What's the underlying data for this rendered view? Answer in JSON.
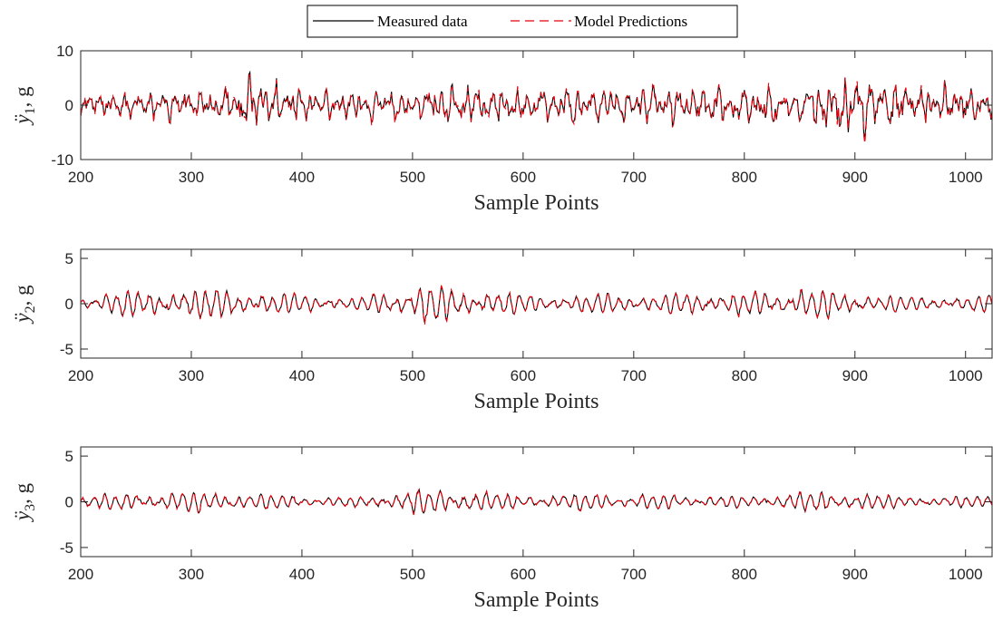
{
  "legend": {
    "items": [
      {
        "label": "Measured data",
        "color": "#000000",
        "dash": "solid"
      },
      {
        "label": "Model Predictions",
        "color": "#e8000b",
        "dash": "dashed"
      }
    ],
    "placement": "top-center"
  },
  "chart_data": [
    {
      "type": "line",
      "title": "",
      "xlabel": "Sample Points",
      "ylabel": "ÿ1, g",
      "ylabel_base": "ÿ",
      "ylabel_sub": "1",
      "ylabel_unit": ", g",
      "xlim": [
        200,
        1024
      ],
      "ylim": [
        -10,
        10
      ],
      "xticks": [
        200,
        300,
        400,
        500,
        600,
        700,
        800,
        900,
        1000
      ],
      "yticks": [
        -10,
        0,
        10
      ],
      "grid": false,
      "series": [
        {
          "name": "Measured data",
          "color": "#000000",
          "envelope": {
            "x": [
              200,
              330,
              345,
              400,
              500,
              560,
              600,
              700,
              740,
              800,
              870,
              895,
              940,
              1024
            ],
            "amp": [
              2.3,
              2.4,
              5.5,
              2.4,
              2.4,
              3.2,
              2.6,
              2.8,
              3.0,
              2.8,
              3.2,
              5.6,
              3.4,
              2.6
            ]
          }
        },
        {
          "name": "Model Predictions",
          "color": "#e8000b",
          "envelope": {
            "x": [
              200,
              330,
              345,
              400,
              500,
              560,
              600,
              700,
              740,
              800,
              870,
              895,
              940,
              1024
            ],
            "amp": [
              2.3,
              2.4,
              5.5,
              2.4,
              2.4,
              3.2,
              2.6,
              2.8,
              3.0,
              2.8,
              3.2,
              5.6,
              3.4,
              2.6
            ]
          }
        }
      ]
    },
    {
      "type": "line",
      "title": "",
      "xlabel": "Sample Points",
      "ylabel": "ÿ2, g",
      "ylabel_base": "ÿ",
      "ylabel_sub": "2",
      "ylabel_unit": ", g",
      "xlim": [
        200,
        1024
      ],
      "ylim": [
        -6,
        6
      ],
      "xticks": [
        200,
        300,
        400,
        500,
        600,
        700,
        800,
        900,
        1000
      ],
      "yticks": [
        -5,
        0,
        5
      ],
      "grid": false,
      "series": [
        {
          "name": "Measured data",
          "color": "#000000",
          "envelope": {
            "x": [
              200,
              250,
              320,
              400,
              450,
              510,
              560,
              600,
              700,
              800,
              870,
              950,
              1024
            ],
            "amp": [
              0.8,
              1.4,
              1.6,
              1.0,
              0.6,
              2.1,
              1.3,
              1.0,
              1.0,
              1.2,
              1.6,
              0.7,
              0.9
            ]
          }
        },
        {
          "name": "Model Predictions",
          "color": "#e8000b",
          "envelope": {
            "x": [
              200,
              250,
              320,
              400,
              450,
              510,
              560,
              600,
              700,
              800,
              870,
              950,
              1024
            ],
            "amp": [
              0.8,
              1.4,
              1.6,
              1.0,
              0.6,
              2.1,
              1.3,
              1.0,
              1.0,
              1.2,
              1.6,
              0.7,
              0.9
            ]
          }
        }
      ]
    },
    {
      "type": "line",
      "title": "",
      "xlabel": "Sample Points",
      "ylabel": "ÿ3, g",
      "ylabel_base": "ÿ",
      "ylabel_sub": "3",
      "ylabel_unit": ", g",
      "xlim": [
        200,
        1024
      ],
      "ylim": [
        -6,
        6
      ],
      "xticks": [
        200,
        300,
        400,
        500,
        600,
        700,
        800,
        900,
        1000
      ],
      "yticks": [
        -5,
        0,
        5
      ],
      "grid": false,
      "series": [
        {
          "name": "Measured data",
          "color": "#000000",
          "envelope": {
            "x": [
              200,
              260,
              330,
              400,
              450,
              520,
              580,
              700,
              800,
              870,
              950,
              1024
            ],
            "amp": [
              0.6,
              1.0,
              1.0,
              0.6,
              0.5,
              1.5,
              0.8,
              0.8,
              0.6,
              1.1,
              0.6,
              0.6
            ]
          }
        },
        {
          "name": "Model Predictions",
          "color": "#e8000b",
          "envelope": {
            "x": [
              200,
              260,
              330,
              400,
              450,
              520,
              580,
              700,
              800,
              870,
              950,
              1024
            ],
            "amp": [
              0.6,
              1.0,
              1.0,
              0.6,
              0.5,
              1.5,
              0.8,
              0.8,
              0.6,
              1.1,
              0.6,
              0.6
            ]
          }
        }
      ]
    }
  ]
}
